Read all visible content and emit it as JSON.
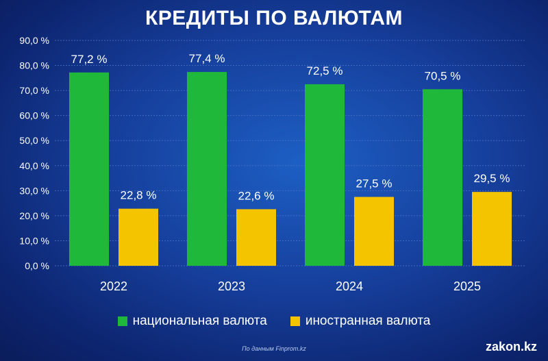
{
  "colors": {
    "national": "#1fb83a",
    "foreign": "#f5c400",
    "grid": "#4a74c6",
    "text": "#ffffff"
  },
  "chart_data": {
    "type": "bar",
    "title": "КРЕДИТЫ ПО ВАЛЮТАМ",
    "categories": [
      "2022",
      "2023",
      "2024",
      "2025"
    ],
    "series": [
      {
        "name": "национальная валюта",
        "values": [
          77.2,
          77.4,
          72.5,
          70.5
        ],
        "labels": [
          "77,2 %",
          "77,4 %",
          "72,5 %",
          "70,5 %"
        ]
      },
      {
        "name": "иностранная валюта",
        "values": [
          22.8,
          22.6,
          27.5,
          29.5
        ],
        "labels": [
          "22,8 %",
          "22,6 %",
          "27,5 %",
          "29,5 %"
        ]
      }
    ],
    "yticks": [
      0,
      10,
      20,
      30,
      40,
      50,
      60,
      70,
      80,
      90
    ],
    "ytick_labels": [
      "0,0 %",
      "10,0 %",
      "20,0 %",
      "30,0 %",
      "40,0 %",
      "50,0 %",
      "60,0 %",
      "70,0 %",
      "80,0 %",
      "90,0 %"
    ],
    "ylim": [
      0,
      90
    ],
    "grid": true,
    "legend": "bottom-center"
  },
  "footer": {
    "source": "По данным Finprom.kz",
    "brand": "zakon.kz"
  }
}
